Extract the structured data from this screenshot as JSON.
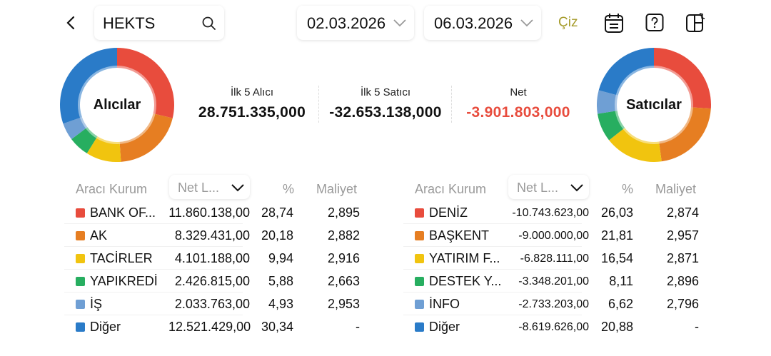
{
  "header": {
    "symbol": "HEKTS",
    "start_date": "02.03.2026",
    "end_date": "06.03.2026",
    "draw_label": "Çiz",
    "icons": [
      "back-icon",
      "search-icon",
      "calendar-icon",
      "help-icon",
      "layout-swap-icon"
    ]
  },
  "colors": [
    "#e84c3d",
    "#e67e22",
    "#f1c40f",
    "#27ae60",
    "#6f9fd4",
    "#2a7bc8"
  ],
  "summary": {
    "buyers_label": "İlk 5 Alıcı",
    "buyers_value": "28.751.335,000",
    "sellers_label": "İlk 5 Satıcı",
    "sellers_value": "-32.653.138,000",
    "net_label": "Net",
    "net_value": "-3.901.803,000",
    "net_color": "#e84c3d"
  },
  "buyers": {
    "title": "Alıcılar",
    "col_broker": "Aracı Kurum",
    "col_sort": "Net L...",
    "col_pct": "%",
    "col_cost": "Maliyet",
    "rows": [
      {
        "name": "BANK OF...",
        "value": "11.860.138,00",
        "pct": "28,74",
        "cost": "2,895",
        "share": 28.74
      },
      {
        "name": "AK",
        "value": "8.329.431,00",
        "pct": "20,18",
        "cost": "2,882",
        "share": 20.18
      },
      {
        "name": "TACİRLER",
        "value": "4.101.188,00",
        "pct": "9,94",
        "cost": "2,916",
        "share": 9.94
      },
      {
        "name": "YAPIKREDİ",
        "value": "2.426.815,00",
        "pct": "5,88",
        "cost": "2,663",
        "share": 5.88
      },
      {
        "name": "İŞ",
        "value": "2.033.763,00",
        "pct": "4,93",
        "cost": "2,953",
        "share": 4.93
      },
      {
        "name": "Diğer",
        "value": "12.521.429,00",
        "pct": "30,34",
        "cost": "-",
        "share": 30.34
      }
    ]
  },
  "sellers": {
    "title": "Satıcılar",
    "col_broker": "Aracı Kurum",
    "col_sort": "Net L...",
    "col_pct": "%",
    "col_cost": "Maliyet",
    "rows": [
      {
        "name": "DENİZ",
        "value": "-10.743.623,00",
        "pct": "26,03",
        "cost": "2,874",
        "share": 26.03
      },
      {
        "name": "BAŞKENT",
        "value": "-9.000.000,00",
        "pct": "21,81",
        "cost": "2,957",
        "share": 21.81
      },
      {
        "name": "YATIRIM F...",
        "value": "-6.828.111,00",
        "pct": "16,54",
        "cost": "2,871",
        "share": 16.54
      },
      {
        "name": "DESTEK Y...",
        "value": "-3.348.201,00",
        "pct": "8,11",
        "cost": "2,896",
        "share": 8.11
      },
      {
        "name": "İNFO",
        "value": "-2.733.203,00",
        "pct": "6,62",
        "cost": "2,796",
        "share": 6.62
      },
      {
        "name": "Diğer",
        "value": "-8.619.626,00",
        "pct": "20,88",
        "cost": "-",
        "share": 20.88
      }
    ]
  }
}
